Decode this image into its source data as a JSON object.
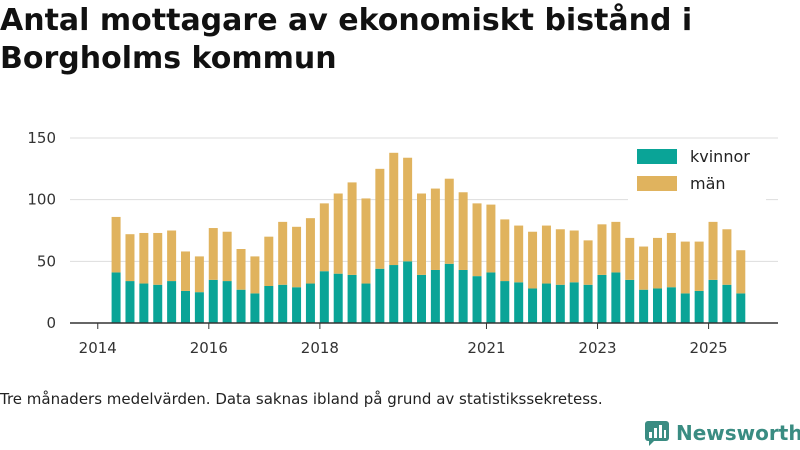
{
  "title": "Antal mottagare av ekonomiskt bistånd i Borgholms kommun",
  "caption": "Tre månaders medelvärden. Data saknas ibland på grund av statistikssekretess.",
  "brand": "Newsworthy",
  "colors": {
    "kvinnor": "#0aa497",
    "man": "#e0b35e",
    "axis": "#333333",
    "grid": "#dddddd",
    "brand": "#3a8c82"
  },
  "chart_data": {
    "type": "bar",
    "stacked": true,
    "title": "Antal mottagare av ekonomiskt bistånd i Borgholms kommun",
    "xlabel": "",
    "ylabel": "",
    "ylim": [
      0,
      150
    ],
    "yticks": [
      0,
      50,
      100,
      150
    ],
    "x_tick_labels": [
      {
        "label": "2014",
        "x": 2014.0
      },
      {
        "label": "2016",
        "x": 2016.0
      },
      {
        "label": "2018",
        "x": 2018.0
      },
      {
        "label": "2021",
        "x": 2021.0
      },
      {
        "label": "2023",
        "x": 2023.0
      },
      {
        "label": "2025",
        "x": 2025.0
      }
    ],
    "xlim": [
      2013.5,
      2026.25
    ],
    "x": [
      2014.33,
      2014.58,
      2014.83,
      2015.08,
      2015.33,
      2015.58,
      2015.83,
      2016.08,
      2016.33,
      2016.58,
      2016.83,
      2017.08,
      2017.33,
      2017.58,
      2017.83,
      2018.08,
      2018.33,
      2018.58,
      2018.83,
      2019.08,
      2019.33,
      2019.58,
      2019.83,
      2020.08,
      2020.33,
      2020.58,
      2020.83,
      2021.08,
      2021.33,
      2021.58,
      2021.83,
      2022.08,
      2022.33,
      2022.58,
      2022.83,
      2023.08,
      2023.33,
      2023.58,
      2023.83,
      2024.08,
      2024.33,
      2024.58,
      2024.83,
      2025.08,
      2025.33,
      2025.58
    ],
    "series": [
      {
        "name": "kvinnor",
        "values": [
          41,
          34,
          32,
          31,
          34,
          26,
          25,
          35,
          34,
          27,
          24,
          30,
          31,
          29,
          32,
          42,
          40,
          39,
          32,
          44,
          47,
          50,
          39,
          43,
          48,
          43,
          38,
          41,
          34,
          33,
          28,
          32,
          31,
          33,
          31,
          39,
          41,
          35,
          27,
          28,
          29,
          24,
          26,
          35,
          31,
          24
        ]
      },
      {
        "name": "män",
        "values": [
          45,
          38,
          41,
          42,
          41,
          32,
          29,
          42,
          40,
          33,
          30,
          40,
          51,
          49,
          53,
          55,
          65,
          75,
          69,
          81,
          91,
          84,
          66,
          66,
          69,
          63,
          59,
          55,
          50,
          46,
          46,
          47,
          45,
          42,
          36,
          41,
          41,
          34,
          35,
          41,
          44,
          42,
          40,
          47,
          45,
          35
        ]
      }
    ],
    "legend": [
      "kvinnor",
      "män"
    ],
    "legend_position": "top-right"
  }
}
